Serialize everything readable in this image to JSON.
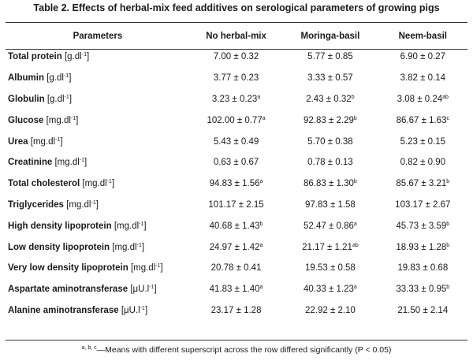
{
  "title": "Table 2. Effects of herbal-mix feed additives on serological parameters of growing pigs",
  "columns": [
    "Parameters",
    "No herbal-mix",
    "Moringa-basil",
    "Neem-basil"
  ],
  "rows": [
    {
      "name": "Total protein",
      "unit": "[g.dl",
      "unit_exp": "-1",
      "unit_close": "]",
      "values": [
        {
          "v": "7.00 ± 0.32",
          "s": ""
        },
        {
          "v": "5.77 ± 0.85",
          "s": ""
        },
        {
          "v": "6.90 ± 0.27",
          "s": ""
        }
      ]
    },
    {
      "name": "Albumin",
      "unit": "[g.dl",
      "unit_exp": "-1",
      "unit_close": "]",
      "values": [
        {
          "v": "3.77 ± 0.23",
          "s": ""
        },
        {
          "v": "3.33 ± 0.57",
          "s": ""
        },
        {
          "v": "3.82 ± 0.14",
          "s": ""
        }
      ]
    },
    {
      "name": "Globulin",
      "unit": "[g.dl",
      "unit_exp": "-1",
      "unit_close": "]",
      "values": [
        {
          "v": "3.23 ± 0.23",
          "s": "a"
        },
        {
          "v": "2.43 ± 0.32",
          "s": "b"
        },
        {
          "v": "3.08 ± 0.24",
          "s": "ab"
        }
      ]
    },
    {
      "name": "Glucose",
      "unit": "[mg.dl",
      "unit_exp": "-1",
      "unit_close": "]",
      "values": [
        {
          "v": "102.00 ± 0.77",
          "s": "a"
        },
        {
          "v": "92.83 ± 2.29",
          "s": "b"
        },
        {
          "v": "86.67 ± 1.63",
          "s": "c"
        }
      ]
    },
    {
      "name": "Urea",
      "unit": "[mg.dl",
      "unit_exp": "-1",
      "unit_close": "]",
      "values": [
        {
          "v": "5.43 ± 0.49",
          "s": ""
        },
        {
          "v": "5.70 ± 0.38",
          "s": ""
        },
        {
          "v": "5.23 ± 0.15",
          "s": ""
        }
      ]
    },
    {
      "name": "Creatinine",
      "unit": "[mg.dl",
      "unit_exp": "-1",
      "unit_close": "]",
      "values": [
        {
          "v": "0.63 ± 0.67",
          "s": ""
        },
        {
          "v": "0.78 ± 0.13",
          "s": ""
        },
        {
          "v": "0.82 ± 0.90",
          "s": ""
        }
      ]
    },
    {
      "name": "Total cholesterol",
      "unit": "[mg.dl",
      "unit_exp": "-1",
      "unit_close": "]",
      "values": [
        {
          "v": "94.83 ± 1.56",
          "s": "a"
        },
        {
          "v": "86.83 ± 1.30",
          "s": "b"
        },
        {
          "v": "85.67 ± 3.21",
          "s": "b"
        }
      ]
    },
    {
      "name": "Triglycerides",
      "unit": "[mg.dl",
      "unit_exp": "-1",
      "unit_close": "]",
      "values": [
        {
          "v": "101.17 ± 2.15",
          "s": ""
        },
        {
          "v": "97.83 ± 1.58",
          "s": ""
        },
        {
          "v": "103.17 ± 2.67",
          "s": ""
        }
      ]
    },
    {
      "name": "High density lipoprotein",
      "unit": "[mg.dl",
      "unit_exp": "-1",
      "unit_close": "]",
      "values": [
        {
          "v": "40.68 ± 1.43",
          "s": "b"
        },
        {
          "v": "52.47 ± 0.86",
          "s": "a"
        },
        {
          "v": "45.73 ± 3.59",
          "s": "b"
        }
      ]
    },
    {
      "name": "Low density lipoprotein",
      "unit": "[mg.dl",
      "unit_exp": "-1",
      "unit_close": "]",
      "values": [
        {
          "v": "24.97 ± 1.42",
          "s": "a"
        },
        {
          "v": "21.17 ± 1.21",
          "s": "ab"
        },
        {
          "v": "18.93 ± 1.28",
          "s": "b"
        }
      ]
    },
    {
      "name": "Very low density lipoprotein",
      "unit": "[mg.dl",
      "unit_exp": "-1",
      "unit_close": "]",
      "values": [
        {
          "v": "20.78 ± 0.41",
          "s": ""
        },
        {
          "v": "19.53 ± 0.58",
          "s": ""
        },
        {
          "v": "19.83 ± 0.68",
          "s": ""
        }
      ]
    },
    {
      "name": "Aspartate aminotransferase",
      "unit": "[μU.l",
      "unit_exp": "-1",
      "unit_close": "]",
      "values": [
        {
          "v": "41.83 ± 1.40",
          "s": "a"
        },
        {
          "v": "40.33 ± 1.23",
          "s": "a"
        },
        {
          "v": "33.33 ± 0.95",
          "s": "b"
        }
      ]
    },
    {
      "name": "Alanine aminotransferase",
      "unit": "[μU.l",
      "unit_exp": "-1",
      "unit_close": "]",
      "values": [
        {
          "v": "23.17 ± 1.28",
          "s": ""
        },
        {
          "v": "22.92 ± 2.10",
          "s": ""
        },
        {
          "v": "21.50 ± 2.14",
          "s": ""
        }
      ]
    }
  ],
  "footnote": {
    "marks": "a, b, c",
    "text": "—Means with different superscript across the row differed significantly (P < 0.05)"
  }
}
